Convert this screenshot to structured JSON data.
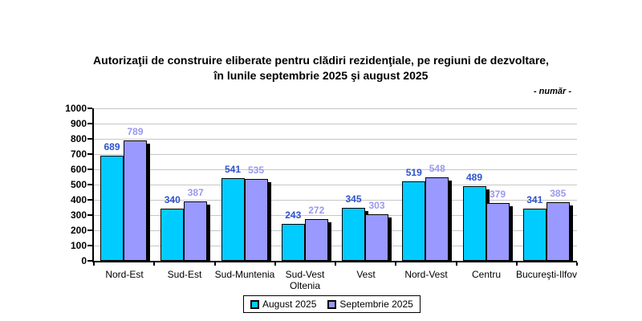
{
  "title": {
    "line1": "Autorizaţii de construire eliberate pentru clădiri rezidenţiale, pe regiuni de dezvoltare,",
    "line2": "în lunile septembrie 2025 şi august 2025"
  },
  "unit_note": "- număr -",
  "colors": {
    "august_bar": "#00CCFF",
    "septembrie_bar": "#9999FF",
    "august_value_label": "#2E52CC",
    "septembrie_value_label": "#9999EE",
    "gridline": "#C6C6C6",
    "axis": "#000000",
    "background": "#FFFFFF"
  },
  "chart_data": {
    "type": "bar",
    "title": "Autorizaţii de construire eliberate pentru clădiri rezidenţiale, pe regiuni de dezvoltare, în lunile septembrie 2025 şi august 2025",
    "unit": "număr",
    "categories": [
      "Nord-Est",
      "Sud-Est",
      "Sud-Muntenia",
      "Sud-Vest Oltenia",
      "Vest",
      "Nord-Vest",
      "Centru",
      "Bucureşti-Ilfov"
    ],
    "series": [
      {
        "name": "August 2025",
        "values": [
          689,
          340,
          541,
          243,
          345,
          519,
          489,
          341
        ],
        "color": "#00CCFF",
        "label_color": "#2E52CC"
      },
      {
        "name": "Septembrie 2025",
        "values": [
          789,
          387,
          535,
          272,
          303,
          548,
          379,
          385
        ],
        "color": "#9999FF",
        "label_color": "#9999EE"
      }
    ],
    "ylim": [
      0,
      1000
    ],
    "ytick_step": 100,
    "yticks": [
      0,
      100,
      200,
      300,
      400,
      500,
      600,
      700,
      800,
      900,
      1000
    ],
    "grid": true,
    "legend_position": "bottom"
  },
  "legend": {
    "items": [
      {
        "label": "August 2025"
      },
      {
        "label": "Septembrie 2025"
      }
    ]
  }
}
